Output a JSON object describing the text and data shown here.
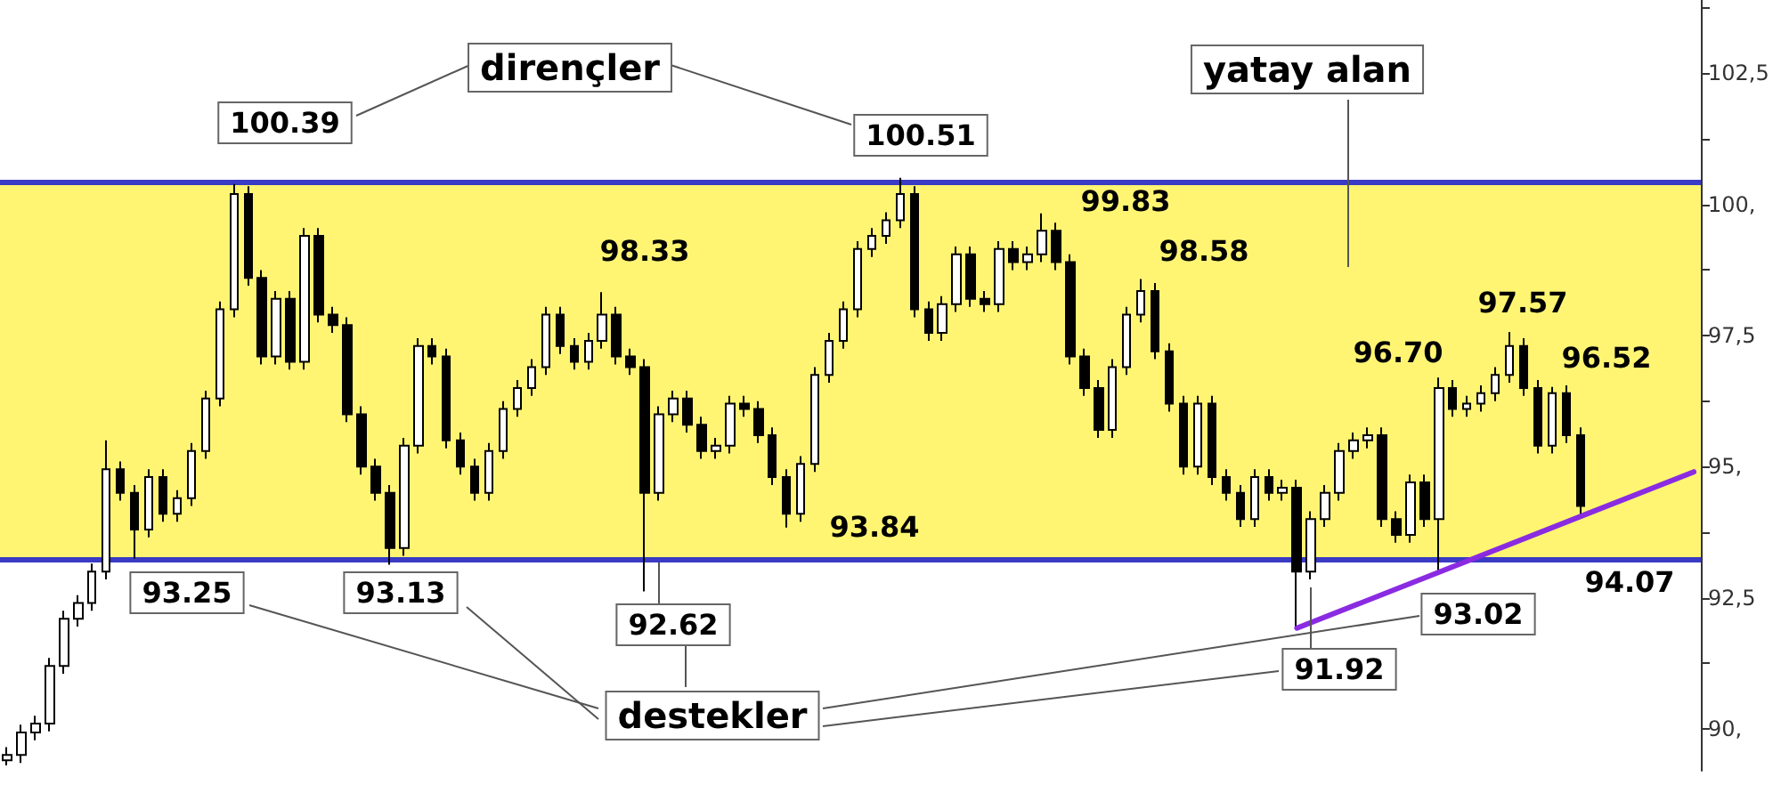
{
  "chart_data": {
    "type": "candlestick",
    "categories": [
      null,
      null,
      null,
      null,
      null,
      null,
      null,
      null,
      null,
      null,
      null,
      null,
      null,
      null,
      null,
      null,
      null,
      null,
      null,
      null,
      null,
      null,
      null,
      null,
      null,
      null,
      null,
      null,
      null,
      null,
      null,
      null,
      null,
      null,
      null,
      null,
      null,
      null,
      null,
      null,
      null,
      null,
      null,
      null,
      null,
      null,
      null,
      null,
      null,
      null,
      null,
      null,
      null,
      null,
      null,
      null,
      null,
      null,
      null,
      null,
      null,
      null,
      null,
      null,
      null,
      null,
      null,
      null,
      null,
      null,
      null,
      null,
      null,
      null,
      null,
      null,
      null,
      null,
      null,
      null,
      null,
      null,
      null,
      null,
      null,
      null,
      null,
      null,
      null,
      null,
      null,
      null,
      null,
      null,
      null,
      null,
      null,
      null,
      null,
      null,
      null,
      null,
      null,
      null,
      null,
      null,
      null,
      null,
      null,
      null,
      null,
      null,
      null,
      null,
      null,
      null,
      null,
      null,
      null,
      null
    ],
    "series": [
      {
        "color": "#000000",
        "ohlc": [
          [
            89.4,
            89.65,
            89.3,
            89.5
          ],
          [
            89.5,
            90.08,
            89.35,
            89.93
          ],
          [
            89.93,
            90.25,
            89.78,
            90.1
          ],
          [
            90.1,
            91.35,
            89.95,
            91.2
          ],
          [
            91.2,
            92.25,
            91.05,
            92.1
          ],
          [
            92.1,
            92.55,
            91.95,
            92.4
          ],
          [
            92.4,
            93.15,
            92.25,
            93.0
          ],
          [
            93.0,
            95.5,
            92.85,
            94.95
          ],
          [
            94.95,
            95.1,
            94.35,
            94.5
          ],
          [
            94.5,
            94.65,
            93.25,
            93.8
          ],
          [
            93.8,
            94.95,
            93.65,
            94.8
          ],
          [
            94.8,
            94.95,
            93.95,
            94.1
          ],
          [
            94.1,
            94.55,
            93.95,
            94.4
          ],
          [
            94.4,
            95.45,
            94.25,
            95.3
          ],
          [
            95.3,
            96.45,
            95.15,
            96.3
          ],
          [
            96.3,
            98.15,
            96.15,
            98.0
          ],
          [
            98.0,
            100.39,
            97.85,
            100.2
          ],
          [
            100.2,
            100.35,
            98.45,
            98.6
          ],
          [
            98.6,
            98.75,
            96.95,
            97.1
          ],
          [
            97.1,
            98.35,
            96.95,
            98.2
          ],
          [
            98.2,
            98.35,
            96.85,
            97.0
          ],
          [
            97.0,
            99.55,
            96.85,
            99.4
          ],
          [
            99.4,
            99.55,
            97.75,
            97.9
          ],
          [
            97.9,
            98.05,
            97.55,
            97.7
          ],
          [
            97.7,
            97.85,
            95.85,
            96.0
          ],
          [
            96.0,
            96.15,
            94.85,
            95.0
          ],
          [
            95.0,
            95.15,
            94.35,
            94.5
          ],
          [
            94.5,
            94.65,
            93.13,
            93.45
          ],
          [
            93.45,
            95.55,
            93.3,
            95.4
          ],
          [
            95.4,
            97.45,
            95.25,
            97.3
          ],
          [
            97.3,
            97.45,
            96.95,
            97.1
          ],
          [
            97.1,
            97.25,
            95.35,
            95.5
          ],
          [
            95.5,
            95.65,
            94.85,
            95.0
          ],
          [
            95.0,
            95.15,
            94.35,
            94.5
          ],
          [
            94.5,
            95.45,
            94.35,
            95.3
          ],
          [
            95.3,
            96.25,
            95.15,
            96.1
          ],
          [
            96.1,
            96.65,
            95.95,
            96.5
          ],
          [
            96.5,
            97.05,
            96.35,
            96.9
          ],
          [
            96.9,
            98.05,
            96.75,
            97.9
          ],
          [
            97.9,
            98.05,
            97.15,
            97.3
          ],
          [
            97.3,
            97.45,
            96.85,
            97.0
          ],
          [
            97.0,
            97.55,
            96.85,
            97.4
          ],
          [
            97.4,
            98.33,
            97.25,
            97.9
          ],
          [
            97.9,
            98.05,
            96.95,
            97.1
          ],
          [
            97.1,
            97.25,
            96.75,
            96.9
          ],
          [
            96.9,
            97.05,
            92.62,
            94.5
          ],
          [
            94.5,
            96.15,
            94.35,
            96.0
          ],
          [
            96.0,
            96.45,
            95.85,
            96.3
          ],
          [
            96.3,
            96.45,
            95.65,
            95.8
          ],
          [
            95.8,
            95.95,
            95.15,
            95.3
          ],
          [
            95.3,
            95.55,
            95.15,
            95.4
          ],
          [
            95.4,
            96.35,
            95.25,
            96.2
          ],
          [
            96.2,
            96.35,
            95.95,
            96.1
          ],
          [
            96.1,
            96.25,
            95.45,
            95.6
          ],
          [
            95.6,
            95.75,
            94.65,
            94.8
          ],
          [
            94.8,
            94.95,
            93.84,
            94.1
          ],
          [
            94.1,
            95.2,
            93.95,
            95.05
          ],
          [
            95.05,
            96.9,
            94.9,
            96.75
          ],
          [
            96.75,
            97.55,
            96.6,
            97.4
          ],
          [
            97.4,
            98.15,
            97.25,
            98.0
          ],
          [
            98.0,
            99.3,
            97.85,
            99.15
          ],
          [
            99.15,
            99.55,
            99.0,
            99.4
          ],
          [
            99.4,
            99.85,
            99.25,
            99.7
          ],
          [
            99.7,
            100.51,
            99.55,
            100.2
          ],
          [
            100.2,
            100.35,
            97.85,
            98.0
          ],
          [
            98.0,
            98.15,
            97.4,
            97.55
          ],
          [
            97.55,
            98.25,
            97.4,
            98.1
          ],
          [
            98.1,
            99.2,
            97.95,
            99.05
          ],
          [
            99.05,
            99.2,
            98.05,
            98.2
          ],
          [
            98.2,
            98.35,
            97.95,
            98.1
          ],
          [
            98.1,
            99.3,
            97.95,
            99.15
          ],
          [
            99.15,
            99.3,
            98.75,
            98.9
          ],
          [
            98.9,
            99.2,
            98.75,
            99.05
          ],
          [
            99.05,
            99.83,
            98.9,
            99.5
          ],
          [
            99.5,
            99.65,
            98.75,
            98.9
          ],
          [
            98.9,
            99.05,
            96.95,
            97.1
          ],
          [
            97.1,
            97.25,
            96.35,
            96.5
          ],
          [
            96.5,
            96.65,
            95.55,
            95.7
          ],
          [
            95.7,
            97.05,
            95.55,
            96.9
          ],
          [
            96.9,
            98.05,
            96.75,
            97.9
          ],
          [
            97.9,
            98.58,
            97.75,
            98.35
          ],
          [
            98.35,
            98.5,
            97.05,
            97.2
          ],
          [
            97.2,
            97.35,
            96.05,
            96.2
          ],
          [
            96.2,
            96.35,
            94.85,
            95.0
          ],
          [
            95.0,
            96.35,
            94.85,
            96.2
          ],
          [
            96.2,
            96.35,
            94.65,
            94.8
          ],
          [
            94.8,
            94.95,
            94.35,
            94.5
          ],
          [
            94.5,
            94.65,
            93.85,
            94.0
          ],
          [
            94.0,
            94.95,
            93.85,
            94.8
          ],
          [
            94.8,
            94.95,
            94.35,
            94.5
          ],
          [
            94.5,
            94.75,
            94.35,
            94.6
          ],
          [
            94.6,
            94.75,
            91.92,
            93.0
          ],
          [
            93.0,
            94.15,
            92.85,
            94.0
          ],
          [
            94.0,
            94.65,
            93.85,
            94.5
          ],
          [
            94.5,
            95.45,
            94.35,
            95.3
          ],
          [
            95.3,
            95.65,
            95.15,
            95.5
          ],
          [
            95.5,
            95.75,
            95.35,
            95.6
          ],
          [
            95.6,
            95.75,
            93.85,
            94.0
          ],
          [
            94.0,
            94.15,
            93.55,
            93.7
          ],
          [
            93.7,
            94.85,
            93.55,
            94.7
          ],
          [
            94.7,
            94.85,
            93.85,
            94.0
          ],
          [
            94.0,
            96.7,
            93.02,
            96.5
          ],
          [
            96.5,
            96.65,
            95.95,
            96.1
          ],
          [
            96.1,
            96.35,
            95.95,
            96.2
          ],
          [
            96.2,
            96.55,
            96.05,
            96.4
          ],
          [
            96.4,
            96.9,
            96.25,
            96.75
          ],
          [
            96.75,
            97.57,
            96.6,
            97.3
          ],
          [
            97.3,
            97.45,
            96.35,
            96.5
          ],
          [
            96.5,
            96.65,
            95.25,
            95.4
          ],
          [
            95.4,
            96.52,
            95.25,
            96.4
          ],
          [
            96.4,
            96.55,
            95.45,
            95.6
          ],
          [
            95.6,
            95.75,
            94.07,
            94.25
          ],
          null,
          null,
          null,
          null,
          null,
          null,
          null,
          null
        ]
      },
      {
        "type": "line",
        "color": "#8a2be2",
        "values": [
          null,
          null,
          null,
          null,
          null,
          null,
          null,
          null,
          null,
          null,
          null,
          null,
          null,
          null,
          null,
          null,
          null,
          null,
          null,
          null,
          null,
          null,
          null,
          null,
          null,
          null,
          null,
          null,
          null,
          null,
          null,
          null,
          null,
          null,
          null,
          null,
          null,
          null,
          null,
          null,
          null,
          null,
          null,
          null,
          null,
          null,
          null,
          null,
          null,
          null,
          null,
          null,
          null,
          null,
          null,
          null,
          null,
          null,
          null,
          null,
          null,
          null,
          null,
          null,
          null,
          null,
          null,
          null,
          null,
          null,
          null,
          null,
          null,
          null,
          null,
          null,
          null,
          null,
          null,
          null,
          null,
          null,
          null,
          null,
          null,
          null,
          null,
          null,
          null,
          null,
          null,
          91.92,
          null,
          null,
          null,
          null,
          null,
          null,
          null,
          null,
          null,
          null,
          null,
          null,
          null,
          null,
          null,
          null,
          null,
          null,
          null,
          null,
          null,
          null,
          null,
          null,
          null,
          null,
          null,
          94.9
        ]
      }
    ],
    "ylim": [
      89.2,
      103.9
    ],
    "yticks": [
      {
        "value": 90,
        "label": "90,"
      },
      {
        "value": 91.25,
        "label": null
      },
      {
        "value": 92.5,
        "label": "92,5"
      },
      {
        "value": 93.75,
        "label": null
      },
      {
        "value": 95,
        "label": "95,"
      },
      {
        "value": 96.25,
        "label": null
      },
      {
        "value": 97.5,
        "label": "97,5"
      },
      {
        "value": 98.75,
        "label": null
      },
      {
        "value": 100,
        "label": "100,"
      },
      {
        "value": 101.25,
        "label": null
      },
      {
        "value": 102.5,
        "label": "102,5"
      },
      {
        "value": 103.75,
        "label": null
      }
    ],
    "ref_lines": [
      {
        "axis": "y",
        "value": 100.44,
        "color": "#3a3ac4"
      },
      {
        "axis": "y",
        "value": 93.24,
        "color": "#3a3ac4"
      }
    ],
    "bands": [
      {
        "axis": "y",
        "from": 93.24,
        "to": 100.44,
        "color": "#fff573",
        "label": "yatay alan"
      }
    ],
    "annotations": [
      "dirençler",
      "100.39",
      "100.51",
      "98.33",
      "99.83",
      "98.58",
      "96.70",
      "97.57",
      "96.52",
      "93.84",
      "94.07",
      "93.25",
      "93.13",
      "92.62",
      "93.02",
      "91.92",
      "destekler"
    ],
    "tick_labels": "y",
    "grid": false
  }
}
